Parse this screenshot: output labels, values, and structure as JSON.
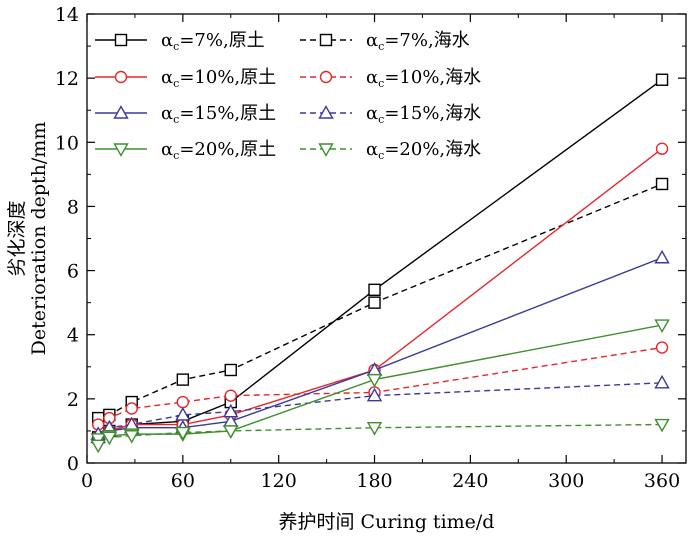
{
  "chart_data": {
    "type": "line",
    "xlabel": "养护时间 Curing time/d",
    "ylabel_cn": "劣化深度",
    "ylabel_en": "Deterioration depth/mm",
    "xlim": [
      0,
      375
    ],
    "ylim": [
      0,
      14
    ],
    "xticks": [
      0,
      60,
      120,
      180,
      240,
      300,
      360
    ],
    "yticks": [
      0,
      2,
      4,
      6,
      8,
      10,
      12,
      14
    ],
    "grid": false,
    "legend_position": "top-left",
    "series": [
      {
        "name": "αc=7%,原土",
        "name_base": "α",
        "name_sub": "c",
        "name_rest": "=7%,原土",
        "color": "#000000",
        "marker": "square",
        "dashed": false,
        "x": [
          7,
          14,
          28,
          60,
          90,
          180,
          360
        ],
        "y": [
          0.8,
          1.0,
          1.2,
          1.3,
          1.9,
          5.4,
          11.95
        ]
      },
      {
        "name": "αc=7%,海水",
        "name_base": "α",
        "name_sub": "c",
        "name_rest": "=7%,海水",
        "color": "#000000",
        "marker": "square",
        "dashed": true,
        "x": [
          7,
          14,
          28,
          60,
          90,
          180,
          360
        ],
        "y": [
          1.4,
          1.5,
          1.9,
          2.6,
          2.9,
          5.0,
          8.7
        ]
      },
      {
        "name": "αc=10%,原土",
        "name_base": "α",
        "name_sub": "c",
        "name_rest": "=10%,原土",
        "color": "#e8262b",
        "marker": "circle",
        "dashed": false,
        "x": [
          7,
          14,
          28,
          60,
          90,
          180,
          360
        ],
        "y": [
          0.8,
          1.0,
          1.2,
          1.2,
          1.5,
          2.9,
          9.8
        ]
      },
      {
        "name": "αc=10%,海水",
        "name_base": "α",
        "name_sub": "c",
        "name_rest": "=10%,海水",
        "color": "#e8262b",
        "marker": "circle",
        "dashed": true,
        "x": [
          7,
          14,
          28,
          60,
          90,
          180,
          360
        ],
        "y": [
          1.2,
          1.4,
          1.7,
          1.9,
          2.1,
          2.2,
          3.6
        ]
      },
      {
        "name": "αc=15%,原土",
        "name_base": "α",
        "name_sub": "c",
        "name_rest": "=15%,原土",
        "color": "#3a3a99",
        "marker": "triangle-up",
        "dashed": false,
        "x": [
          7,
          14,
          28,
          60,
          90,
          180,
          360
        ],
        "y": [
          0.8,
          1.0,
          1.1,
          1.1,
          1.3,
          2.9,
          6.4
        ]
      },
      {
        "name": "αc=15%,海水",
        "name_base": "α",
        "name_sub": "c",
        "name_rest": "=15%,海水",
        "color": "#3a3a99",
        "marker": "triangle-up",
        "dashed": true,
        "x": [
          7,
          14,
          28,
          60,
          90,
          180,
          360
        ],
        "y": [
          0.9,
          1.1,
          1.2,
          1.5,
          1.6,
          2.1,
          2.5
        ]
      },
      {
        "name": "αc=20%,原土",
        "name_base": "α",
        "name_sub": "c",
        "name_rest": "=20%,原土",
        "color": "#3f8f2e",
        "marker": "triangle-down",
        "dashed": false,
        "x": [
          7,
          14,
          28,
          60,
          90,
          180,
          360
        ],
        "y": [
          0.75,
          0.85,
          0.9,
          0.9,
          1.0,
          2.6,
          4.3
        ]
      },
      {
        "name": "αc=20%,海水",
        "name_base": "α",
        "name_sub": "c",
        "name_rest": "=20%,海水",
        "color": "#3f8f2e",
        "marker": "triangle-down",
        "dashed": true,
        "x": [
          7,
          14,
          28,
          60,
          90,
          180,
          360
        ],
        "y": [
          0.55,
          0.8,
          0.85,
          0.95,
          1.0,
          1.1,
          1.2
        ]
      }
    ]
  }
}
